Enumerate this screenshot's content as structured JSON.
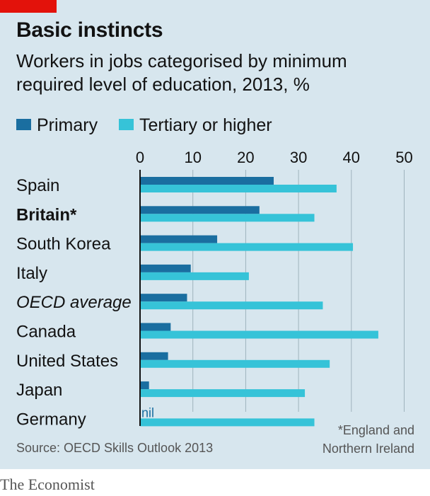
{
  "title": "Basic instincts",
  "subtitle": "Workers in jobs categorised by minimum required level of education, 2013, %",
  "source": "Source: OECD Skills Outlook 2013",
  "footnote": [
    "*England and",
    "Northern Ireland"
  ],
  "brand": "The Economist",
  "colors": {
    "primary": "#1a6ea0",
    "tertiary": "#36c3d8",
    "background": "#d7e6ee",
    "brand_red": "#e3120b"
  },
  "chart_data": {
    "type": "bar",
    "orientation": "horizontal",
    "categories": [
      "Spain",
      "Britain*",
      "South Korea",
      "Italy",
      "OECD average",
      "Canada",
      "United States",
      "Japan",
      "Germany"
    ],
    "category_styles": [
      "normal",
      "bold",
      "normal",
      "normal",
      "italic",
      "normal",
      "normal",
      "normal",
      "normal"
    ],
    "series": [
      {
        "name": "Primary",
        "values": [
          25.3,
          22.6,
          14.6,
          9.6,
          8.9,
          5.8,
          5.3,
          1.7,
          0
        ]
      },
      {
        "name": "Tertiary or higher",
        "values": [
          37.2,
          33.0,
          40.3,
          20.6,
          34.6,
          45.1,
          35.9,
          31.2,
          33.0
        ]
      }
    ],
    "annotations": [
      {
        "category": "Germany",
        "series": "Primary",
        "text": "nil"
      }
    ],
    "xlim": [
      0,
      50
    ],
    "xticks": [
      0,
      10,
      20,
      30,
      40,
      50
    ],
    "grid": true,
    "legend_position": "top"
  }
}
